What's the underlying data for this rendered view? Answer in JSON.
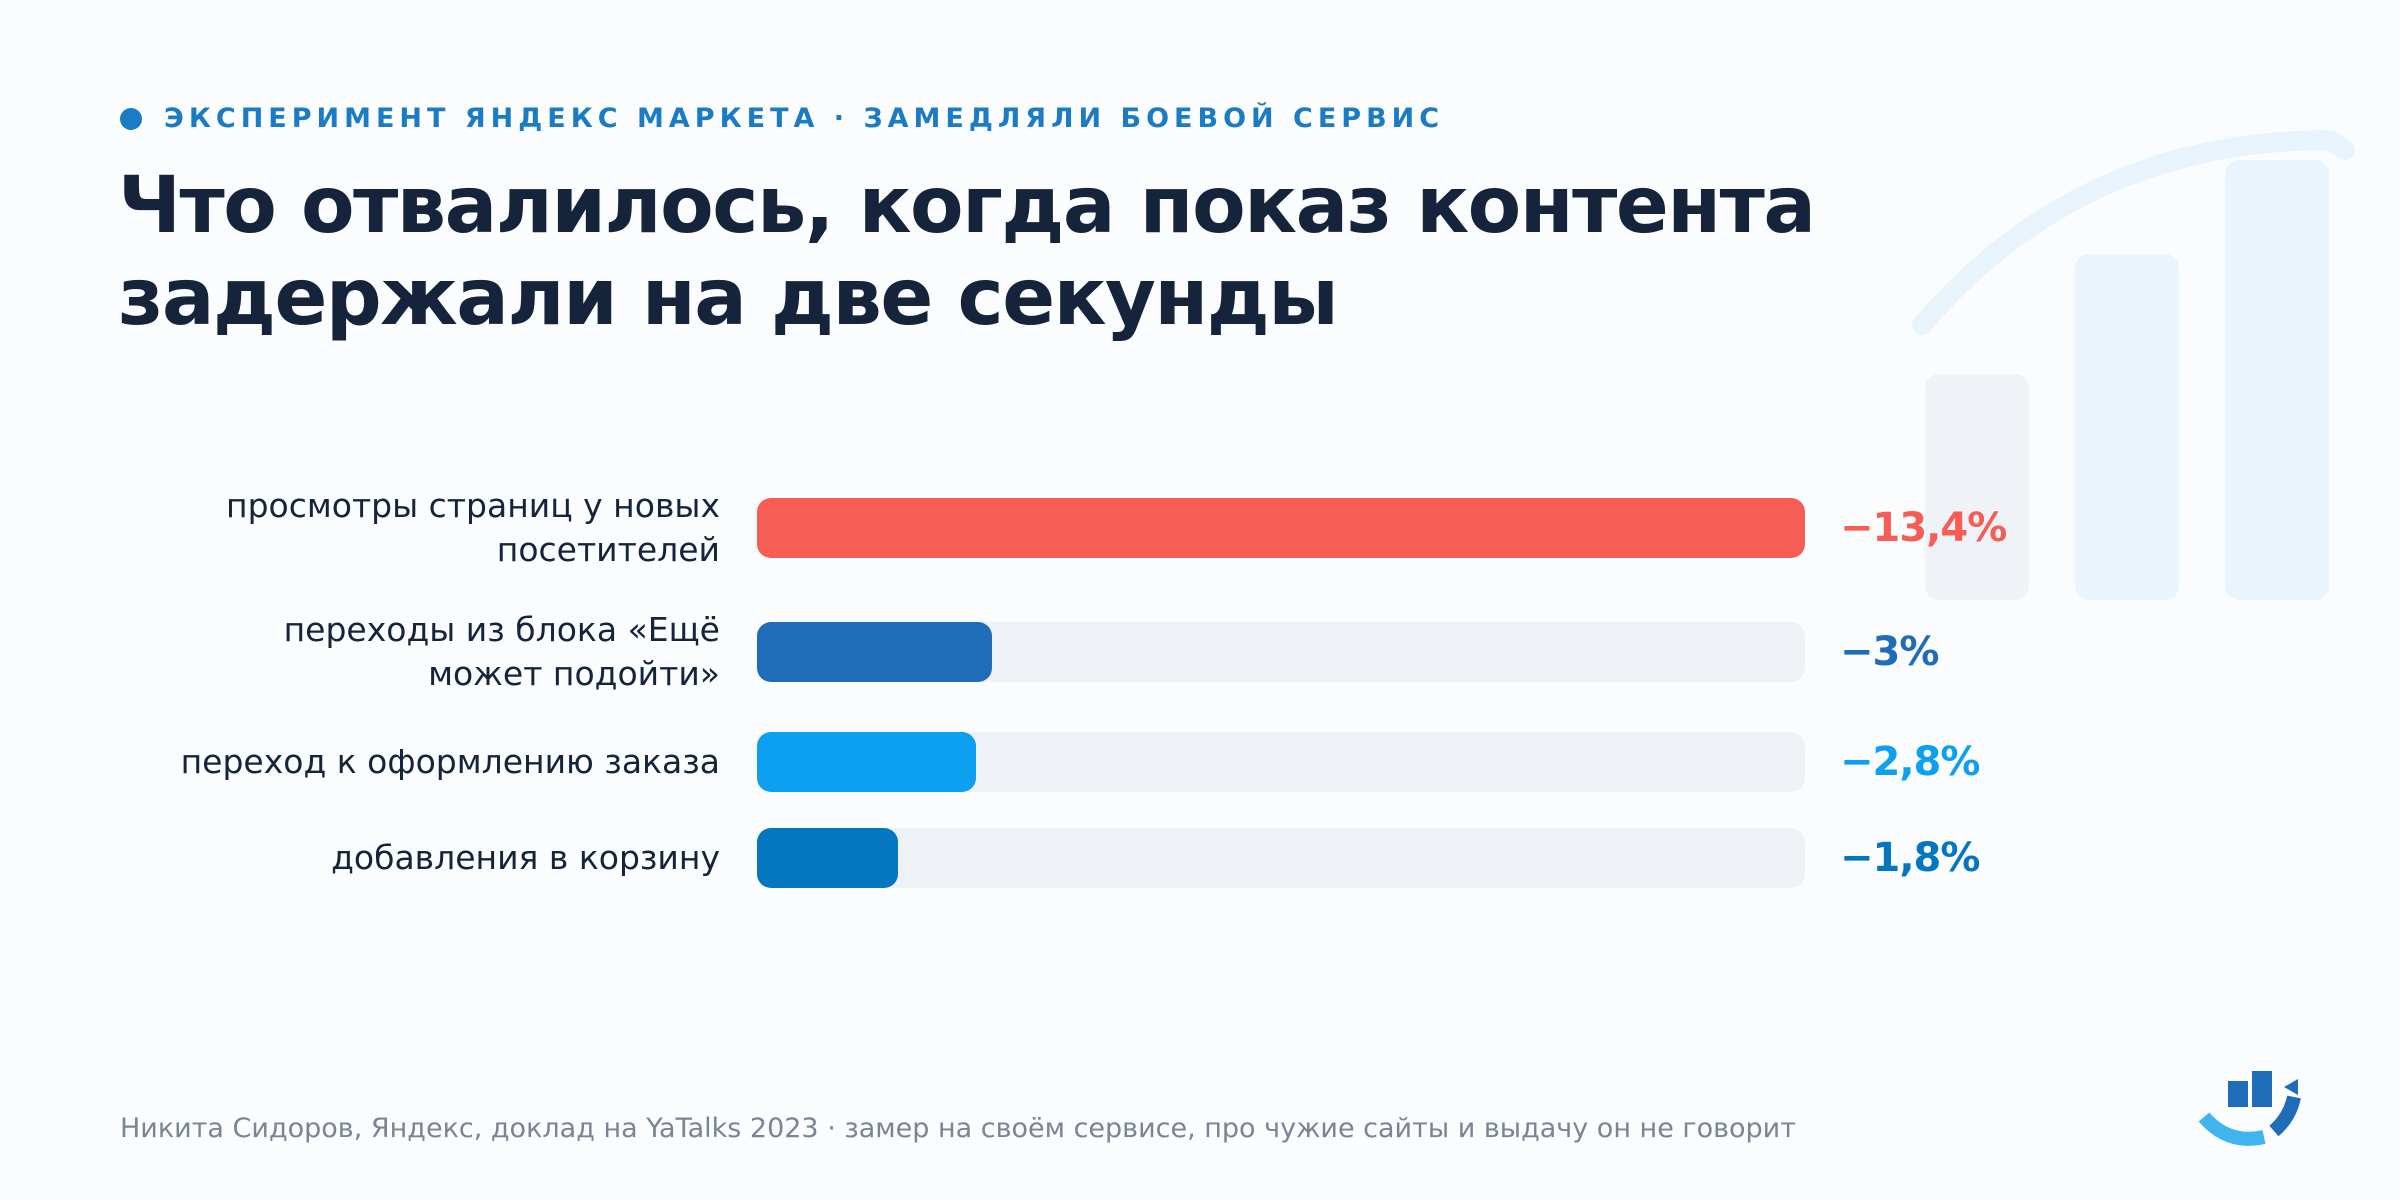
{
  "eyebrow": "ЭКСПЕРИМЕНТ ЯНДЕКС МАРКЕТА · ЗАМЕДЛЯЛИ БОЕВОЙ СЕРВИС",
  "title_lines": [
    "Что отвалилось, когда показ контента",
    "задержали на две секунды"
  ],
  "footer": "Никита Сидоров, Яндекс, доклад на YaTalks 2023 · замер на своём сервисе, про чужие сайты и выдачу он не говорит",
  "colors": {
    "red": "#f55d55",
    "blue_dark": "#1f6db8",
    "blue_light": "#0ea0f0",
    "blue_mid": "#0477c0",
    "track": "#eef2f7",
    "title": "#15233b",
    "accent": "#1b7bc4"
  },
  "chart_data": {
    "type": "bar",
    "orientation": "horizontal",
    "categories": [
      [
        "просмотры страниц у новых",
        "посетителей"
      ],
      [
        "переходы из блока «Ещё",
        "может подойти»"
      ],
      [
        "переход к оформлению заказа"
      ],
      [
        "добавления в корзину"
      ]
    ],
    "values": [
      -13.4,
      -3,
      -2.8,
      -1.8
    ],
    "value_labels": [
      "−13,4%",
      "−3%",
      "−2,8%",
      "−1,8%"
    ],
    "bar_colors": [
      "#f55d55",
      "#1f6db8",
      "#0ea0f0",
      "#0477c0"
    ],
    "xlim": [
      0,
      13.4
    ],
    "grid": false,
    "legend": "none"
  }
}
